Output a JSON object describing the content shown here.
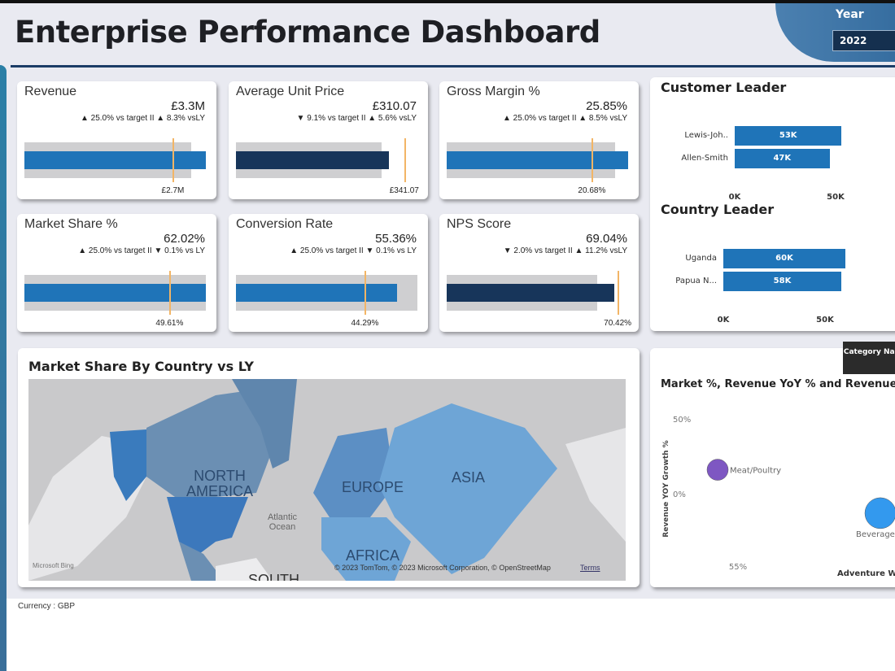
{
  "header": {
    "title": "Enterprise Performance Dashboard",
    "year_label": "Year",
    "year_value": "2022"
  },
  "kpis": [
    {
      "name": "Revenue",
      "value": "£3.3M",
      "comparison": "▲ 25.0% vs target II ▲ 8.3% vsLY",
      "target_label": "£2.7M",
      "actual": 3.3,
      "target": 2.7,
      "bar_color": "#1f74b8"
    },
    {
      "name": "Average Unit Price",
      "value": "£310.07",
      "comparison": "▼ 9.1% vs target II ▲ 5.6% vsLY",
      "target_label": "£341.07",
      "actual": 310.07,
      "target": 341.07,
      "bar_color": "#17355a"
    },
    {
      "name": "Gross Margin %",
      "value": "25.85%",
      "comparison": "▲ 25.0% vs target II ▲ 8.5% vsLY",
      "target_label": "20.68%",
      "actual": 25.85,
      "target": 20.68,
      "bar_color": "#1f74b8"
    },
    {
      "name": "Market Share %",
      "value": "62.02%",
      "comparison": "▲ 25.0% vs target II ▼ 0.1% vs LY",
      "target_label": "49.61%",
      "actual": 62.02,
      "target": 49.61,
      "bar_color": "#1f74b8"
    },
    {
      "name": "Conversion Rate",
      "value": "55.36%",
      "comparison": "▲ 25.0% vs target II ▼ 0.1% vs LY",
      "target_label": "44.29%",
      "actual": 55.36,
      "target": 44.29,
      "bar_color": "#1f74b8"
    },
    {
      "name": "NPS Score",
      "value": "69.04%",
      "comparison": "▼ 2.0% vs target II ▲ 11.2% vsLY",
      "target_label": "70.42%",
      "actual": 69.04,
      "target": 70.42,
      "bar_color": "#17355a"
    }
  ],
  "customer_leader": {
    "title": "Customer Leader",
    "items": [
      {
        "label": "Lewis-Joh..",
        "value": 53,
        "text": "53K"
      },
      {
        "label": "Allen-Smith",
        "value": 47,
        "text": "47K"
      }
    ],
    "ticks": [
      "0K",
      "50K"
    ]
  },
  "country_leader": {
    "title": "Country Leader",
    "items": [
      {
        "label": "Uganda",
        "value": 60,
        "text": "60K"
      },
      {
        "label": "Papua N...",
        "value": 58,
        "text": "58K"
      }
    ],
    "ticks": [
      "0K",
      "50K"
    ]
  },
  "map": {
    "title": "Market Share By Country vs LY",
    "labels": [
      "NORTH AMERICA",
      "EUROPE",
      "ASIA",
      "AFRICA",
      "SOUTH",
      "Atlantic Ocean"
    ],
    "attribution": "© 2023 TomTom, © 2023 Microsoft Corporation, © OpenStreetMap",
    "terms": "Terms",
    "logo": "Microsoft Bing"
  },
  "bubble": {
    "title": "Market %, Revenue YoY % and Revenue b",
    "legend_button": "Category Name",
    "ylabel": "Revenue YOY Growth %",
    "yticks": [
      "50%",
      "0%"
    ],
    "xticks": [
      "55%"
    ],
    "points": [
      {
        "name": "Meat/Poultry",
        "x": 54,
        "y": 16,
        "color": "#7e57c2"
      },
      {
        "name": "Beverages",
        "x": 62,
        "y": -13,
        "color": "#3399ee"
      }
    ],
    "cut_label": "Adventure W"
  },
  "footer": {
    "currency": "Currency : GBP"
  }
}
